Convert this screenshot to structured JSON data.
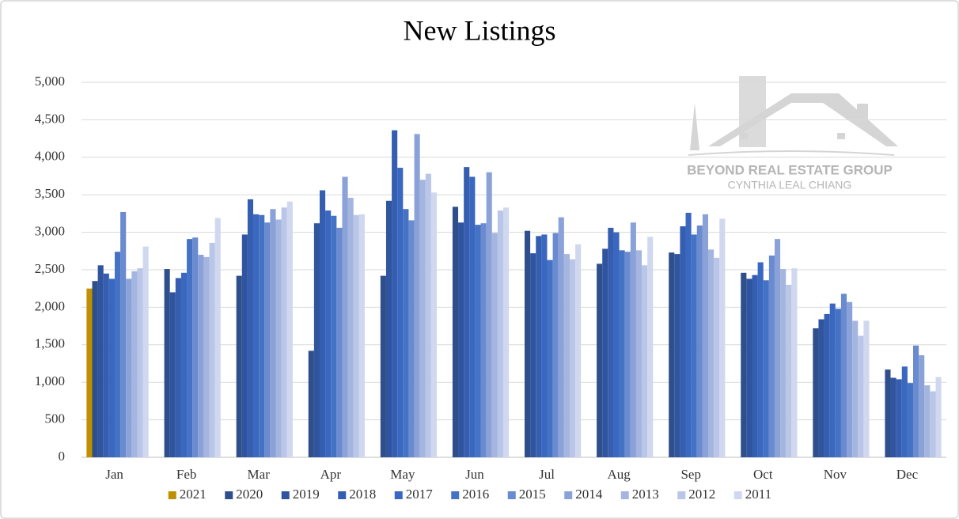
{
  "chart_data": {
    "type": "bar",
    "title": "New Listings",
    "annotations": [
      "BEYOND REAL ESTATE GROUP",
      "CYNTHIA LEAL CHIANG"
    ],
    "categories": [
      "Jan",
      "Feb",
      "Mar",
      "Apr",
      "May",
      "Jun",
      "Jul",
      "Aug",
      "Sep",
      "Oct",
      "Nov",
      "Dec"
    ],
    "series": [
      {
        "name": "2021",
        "color": "#bf9000",
        "values": [
          2250,
          null,
          null,
          null,
          null,
          null,
          null,
          null,
          null,
          null,
          null,
          null
        ]
      },
      {
        "name": "2020",
        "color": "#2f4f8c",
        "values": [
          2350,
          2510,
          2420,
          1420,
          2420,
          3340,
          3020,
          2580,
          2730,
          2460,
          1720,
          1170
        ]
      },
      {
        "name": "2019",
        "color": "#30559f",
        "values": [
          2560,
          2200,
          2970,
          3120,
          3420,
          3130,
          2720,
          2780,
          2710,
          2380,
          1840,
          1060
        ]
      },
      {
        "name": "2018",
        "color": "#355eb0",
        "values": [
          2450,
          2390,
          3440,
          3560,
          4360,
          3870,
          2950,
          3060,
          3080,
          2430,
          1910,
          1040
        ]
      },
      {
        "name": "2017",
        "color": "#3a67c0",
        "values": [
          2380,
          2460,
          3240,
          3290,
          3860,
          3740,
          2970,
          3000,
          3260,
          2600,
          2050,
          1210
        ]
      },
      {
        "name": "2016",
        "color": "#4472c4",
        "values": [
          2740,
          2910,
          3230,
          3220,
          3310,
          3100,
          2630,
          2760,
          2970,
          2360,
          1980,
          990
        ]
      },
      {
        "name": "2015",
        "color": "#6a8bd0",
        "values": [
          3270,
          2930,
          3130,
          3060,
          3160,
          3120,
          2990,
          2740,
          3090,
          2690,
          2180,
          1490
        ]
      },
      {
        "name": "2014",
        "color": "#8aa2d8",
        "values": [
          2380,
          2700,
          3310,
          3740,
          4310,
          3800,
          3200,
          3130,
          3240,
          2910,
          2070,
          1360
        ]
      },
      {
        "name": "2013",
        "color": "#a4b5e0",
        "values": [
          2480,
          2670,
          3170,
          3460,
          3700,
          2990,
          2710,
          2760,
          2770,
          2510,
          1820,
          960
        ]
      },
      {
        "name": "2012",
        "color": "#b9c6e8",
        "values": [
          2520,
          2860,
          3330,
          3230,
          3780,
          3290,
          2640,
          2560,
          2660,
          2300,
          1620,
          880
        ]
      },
      {
        "name": "2011",
        "color": "#cfd8ef",
        "values": [
          2810,
          3190,
          3410,
          3240,
          3530,
          3330,
          2840,
          2940,
          3180,
          2520,
          1820,
          1070
        ]
      }
    ],
    "ylim": [
      0,
      5000
    ],
    "yticks": [
      0,
      500,
      {
        "value": 1000,
        "label": "1,000"
      },
      {
        "value": 1500,
        "label": "1,500"
      },
      {
        "value": 2000,
        "label": "2,000"
      },
      {
        "value": 2500,
        "label": "2,500"
      },
      {
        "value": 3000,
        "label": "3,000"
      },
      {
        "value": 3500,
        "label": "3,500"
      },
      {
        "value": 4000,
        "label": "4,000"
      },
      {
        "value": 4500,
        "label": "4,500"
      },
      {
        "value": 5000,
        "label": "5,000"
      }
    ],
    "grid": true,
    "legend": "bottom"
  }
}
